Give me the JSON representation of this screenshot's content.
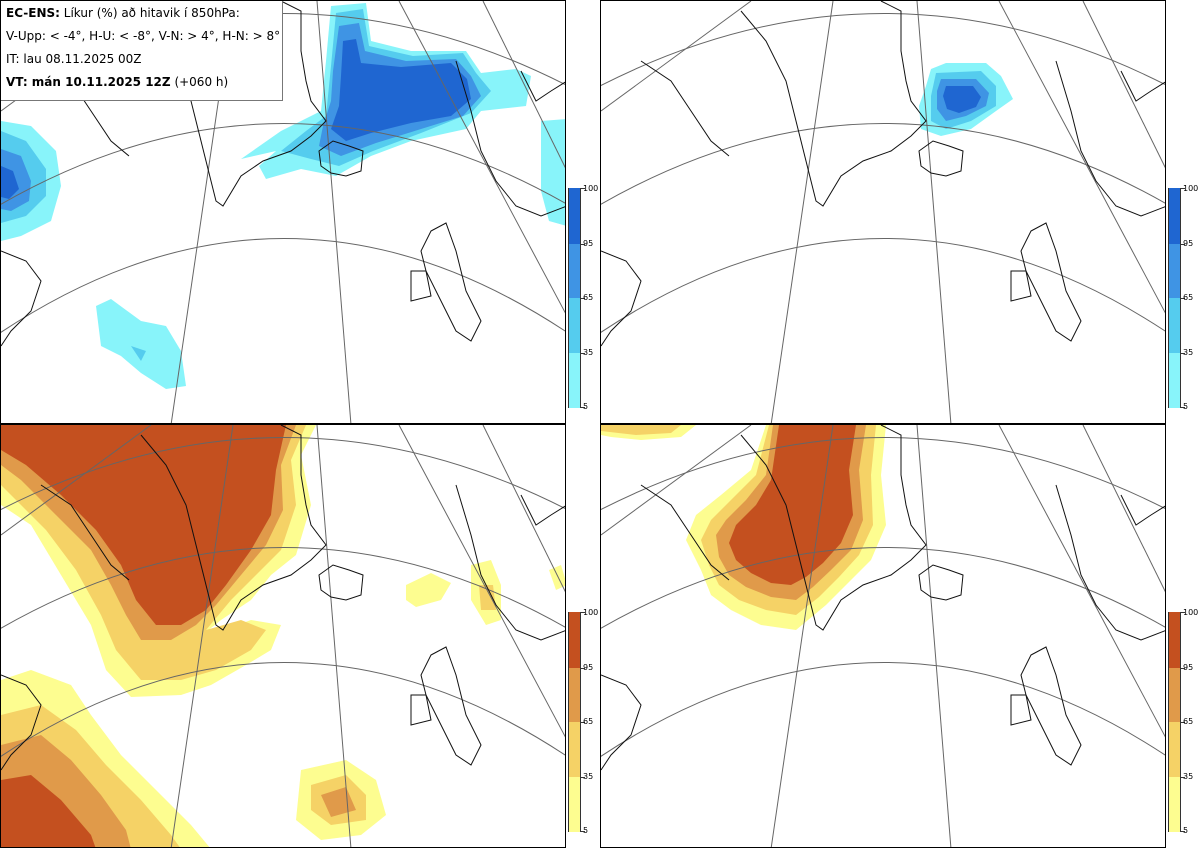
{
  "header": {
    "model": "EC-ENS:",
    "description": "Líkur (%) að hitavik í 850hPa:",
    "thresholds": "V-Upp: < -4°, H-U: < -8°, V-N: > 4°, H-N: > 8°",
    "init_time": "IT: lau 08.11.2025 00Z",
    "valid_label": "VT: mán 10.11.2025 12Z",
    "lead_time": "(+060 h)"
  },
  "panels": [
    {
      "id": "V-Upp",
      "palette": "cold"
    },
    {
      "id": "H-U",
      "palette": "cold"
    },
    {
      "id": "V-N",
      "palette": "warm"
    },
    {
      "id": "H-N",
      "palette": "warm"
    }
  ],
  "colorbar": {
    "levels": [
      "100",
      "95",
      "65",
      "35",
      "5"
    ],
    "cold_colors": [
      "#1f66d1",
      "#3f94e4",
      "#55ccee",
      "#88f4fa"
    ],
    "warm_colors": [
      "#c4501f",
      "#e09a4a",
      "#f5d266",
      "#fdfd90"
    ]
  },
  "palettes": {
    "cold": [
      "#88f4fa",
      "#55ccee",
      "#3f94e4",
      "#1f66d1"
    ],
    "warm": [
      "#fdfd90",
      "#f5d266",
      "#e09a4a",
      "#c4501f"
    ]
  }
}
